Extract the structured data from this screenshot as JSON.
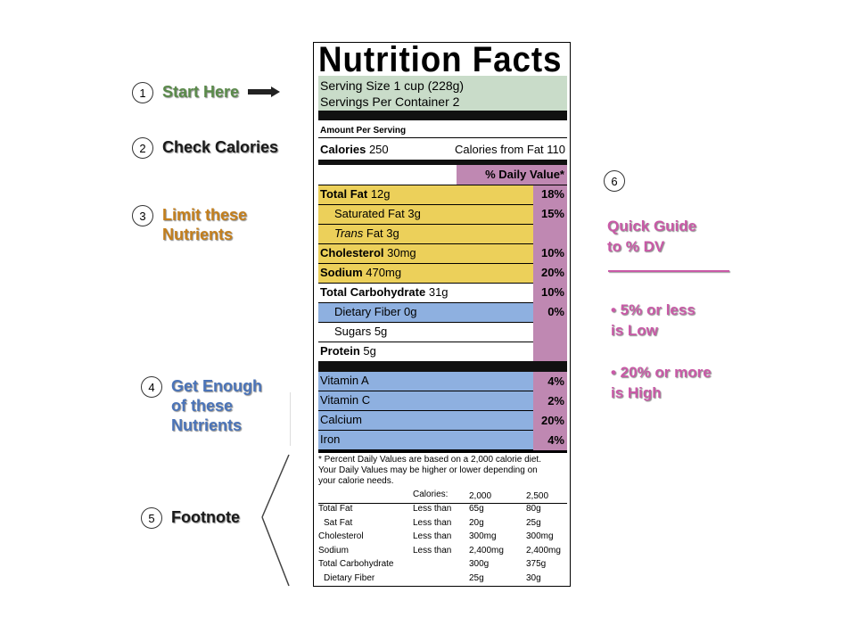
{
  "steps": [
    {
      "num": "1",
      "text": "Start Here",
      "color": "#5a8a4a"
    },
    {
      "num": "2",
      "text": "Check Calories",
      "color": "#1a1a1a"
    },
    {
      "num": "3",
      "text": "Limit these\nNutrients",
      "color": "#c47f1c"
    },
    {
      "num": "4",
      "text": "Get Enough\nof these\nNutrients",
      "color": "#4b74b8"
    },
    {
      "num": "5",
      "text": "Footnote",
      "color": "#1a1a1a"
    }
  ],
  "label": {
    "title": "Nutrition Facts",
    "serving_size": "Serving Size 1 cup (228g)",
    "servings_per_container": "Servings Per Container  2",
    "amount_per_serving": "Amount Per Serving",
    "calories_label": "Calories",
    "calories_value": "250",
    "calories_from_fat": "Calories from Fat 110",
    "dv_header": "% Daily Value*",
    "nutrients_limit": [
      {
        "name": "Total Fat",
        "amount": "12g",
        "pct": "18%"
      },
      {
        "name": "Saturated Fat",
        "amount": "3g",
        "pct": "15%"
      },
      {
        "name": "Trans",
        "amount": "Fat 3g",
        "pct": ""
      },
      {
        "name": "Cholesterol",
        "amount": "30mg",
        "pct": "10%"
      },
      {
        "name": "Sodium",
        "amount": "470mg",
        "pct": "20%"
      }
    ],
    "carb": {
      "name": "Total Carbohydrate",
      "amount": "31g",
      "pct": "10%"
    },
    "fiber": {
      "name": "Dietary Fiber",
      "amount": "0g",
      "pct": "0%"
    },
    "sugars": {
      "name": "Sugars",
      "amount": "5g"
    },
    "protein": {
      "name": "Protein",
      "amount": "5g"
    },
    "vitamins": [
      {
        "name": "Vitamin A",
        "pct": "4%"
      },
      {
        "name": "Vitamin C",
        "pct": "2%"
      },
      {
        "name": "Calcium",
        "pct": "20%"
      },
      {
        "name": "Iron",
        "pct": "4%"
      }
    ],
    "footnote_text": "* Percent Daily Values are based on a 2,000 calorie diet.\n  Your Daily Values may be higher or lower depending on\n  your calorie needs.",
    "footnote_table": {
      "calories_label": "Calories:",
      "col1": "2,000",
      "col2": "2,500",
      "rows": [
        {
          "name": "Total Fat",
          "qual": "Less than",
          "v1": "65g",
          "v2": "80g"
        },
        {
          "name": "Sat Fat",
          "qual": "Less than",
          "v1": "20g",
          "v2": "25g"
        },
        {
          "name": "Cholesterol",
          "qual": "Less than",
          "v1": "300mg",
          "v2": "300mg"
        },
        {
          "name": "Sodium",
          "qual": "Less than",
          "v1": "2,400mg",
          "v2": "2,400mg"
        },
        {
          "name": "Total Carbohydrate",
          "qual": "",
          "v1": "300g",
          "v2": "375g"
        },
        {
          "name": "Dietary Fiber",
          "qual": "",
          "v1": "25g",
          "v2": "30g"
        }
      ]
    }
  },
  "guide": {
    "num": "6",
    "title": "Quick Guide\n   to % DV",
    "low": "• 5% or less\n   is Low",
    "high": "• 20% or more\n   is High",
    "color": "#c95aa7"
  },
  "colors": {
    "serving_bg": "#c9dcc9",
    "limit_bg": "#ecd05a",
    "enough_bg": "#8eb0e0",
    "dv_bg": "#bf88b2"
  }
}
